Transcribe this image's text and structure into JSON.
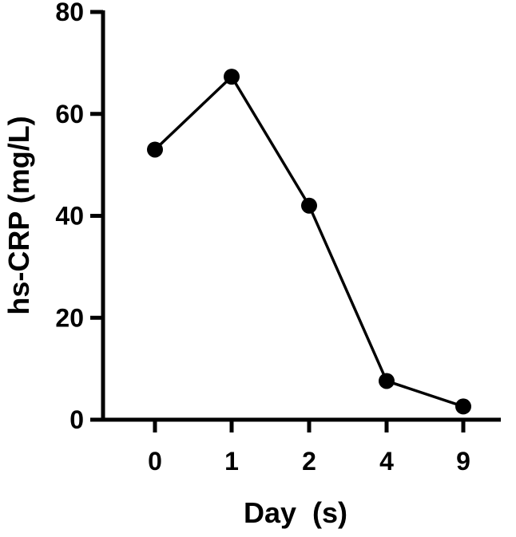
{
  "chart_data": {
    "type": "line",
    "title": "",
    "xlabel": "Day  (s)",
    "ylabel": "hs-CRP (mg/L)",
    "categories": [
      "0",
      "1",
      "2",
      "4",
      "9"
    ],
    "series": [
      {
        "values": [
          53,
          67.3,
          42,
          7.6,
          2.6
        ]
      }
    ],
    "ylim": [
      0,
      80
    ],
    "yticks": [
      "0",
      "20",
      "40",
      "60",
      "80"
    ],
    "grid": false,
    "legend": "none",
    "line_color": "#000000",
    "marker_color": "#000000"
  }
}
